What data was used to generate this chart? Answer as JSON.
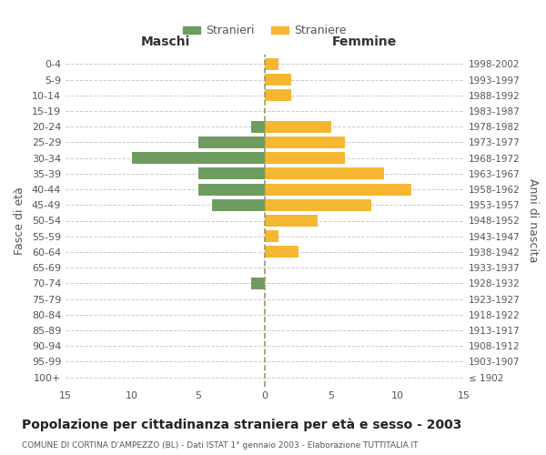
{
  "age_groups": [
    "100+",
    "95-99",
    "90-94",
    "85-89",
    "80-84",
    "75-79",
    "70-74",
    "65-69",
    "60-64",
    "55-59",
    "50-54",
    "45-49",
    "40-44",
    "35-39",
    "30-34",
    "25-29",
    "20-24",
    "15-19",
    "10-14",
    "5-9",
    "0-4"
  ],
  "birth_years": [
    "≤ 1902",
    "1903-1907",
    "1908-1912",
    "1913-1917",
    "1918-1922",
    "1923-1927",
    "1928-1932",
    "1933-1937",
    "1938-1942",
    "1943-1947",
    "1948-1952",
    "1953-1957",
    "1958-1962",
    "1963-1967",
    "1968-1972",
    "1973-1977",
    "1978-1982",
    "1983-1987",
    "1988-1992",
    "1993-1997",
    "1998-2002"
  ],
  "maschi": [
    0,
    0,
    0,
    0,
    0,
    0,
    1,
    0,
    0,
    0,
    0,
    4,
    5,
    5,
    10,
    5,
    1,
    0,
    0,
    0,
    0
  ],
  "femmine": [
    0,
    0,
    0,
    0,
    0,
    0,
    0,
    0,
    2.5,
    1,
    4,
    8,
    11,
    9,
    6,
    6,
    5,
    0,
    2,
    2,
    1
  ],
  "maschi_color": "#6e9c5f",
  "femmine_color": "#f5b731",
  "bar_height": 0.75,
  "xlim": 15,
  "title": "Popolazione per cittadinanza straniera per età e sesso - 2003",
  "subtitle": "COMUNE DI CORTINA D'AMPEZZO (BL) - Dati ISTAT 1° gennaio 2003 - Elaborazione TUTTITALIA.IT",
  "ylabel_left": "Fasce di età",
  "ylabel_right": "Anni di nascita",
  "xlabel_left": "Maschi",
  "xlabel_right": "Femmine",
  "legend_maschi": "Stranieri",
  "legend_femmine": "Straniere",
  "bg_color": "#ffffff",
  "grid_color": "#cccccc",
  "tick_color": "#888888",
  "label_color": "#555555",
  "title_color": "#222222",
  "subtitle_color": "#555555"
}
